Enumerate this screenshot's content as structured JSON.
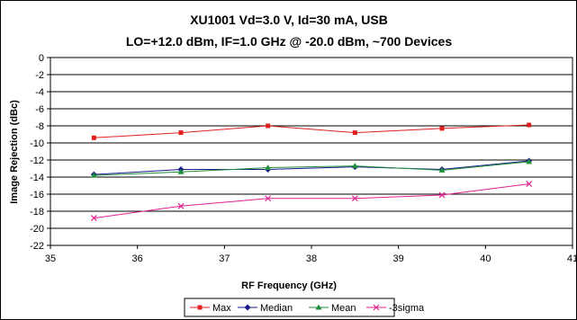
{
  "chart_data": {
    "type": "line",
    "title_line1": "XU1001 Vd=3.0 V, Id=30 mA, USB",
    "title_line2": "LO=+12.0 dBm, IF=1.0 GHz @ -20.0 dBm, ~700 Devices",
    "xlabel": "RF Frequency (GHz)",
    "ylabel": "Image Rejection (dBc)",
    "xlim": [
      35,
      41
    ],
    "ylim": [
      -22,
      0
    ],
    "x_ticks": [
      35,
      36,
      37,
      38,
      39,
      40,
      41
    ],
    "y_ticks": [
      0,
      -2,
      -4,
      -6,
      -8,
      -10,
      -12,
      -14,
      -16,
      -18,
      -20,
      -22
    ],
    "grid": "horizontal",
    "legend_position": "bottom",
    "x": [
      35.5,
      36.5,
      37.5,
      38.5,
      39.5,
      40.5
    ],
    "series": [
      {
        "name": "Max",
        "color": "#e02020",
        "marker": "square",
        "values": [
          -9.4,
          -8.8,
          -8.0,
          -8.8,
          -8.3,
          -7.9
        ]
      },
      {
        "name": "Median",
        "color": "#1a1a8c",
        "marker": "diamond",
        "values": [
          -13.7,
          -13.1,
          -13.1,
          -12.8,
          -13.1,
          -12.1
        ]
      },
      {
        "name": "Mean",
        "color": "#1f8f3a",
        "marker": "triangle",
        "values": [
          -13.8,
          -13.4,
          -12.9,
          -12.7,
          -13.2,
          -12.2
        ]
      },
      {
        "name": "-3sigma",
        "color": "#e0208f",
        "marker": "x",
        "values": [
          -18.8,
          -17.4,
          -16.5,
          -16.5,
          -16.1,
          -14.8
        ]
      }
    ]
  }
}
